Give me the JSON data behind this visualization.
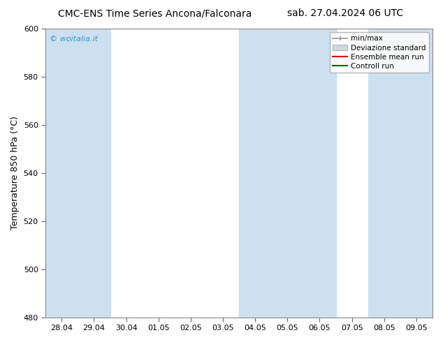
{
  "title_left": "CMC-ENS Time Series Ancona/Falconara",
  "title_right": "sab. 27.04.2024 06 UTC",
  "ylabel": "Temperature 850 hPa (°C)",
  "ylim": [
    480,
    600
  ],
  "yticks": [
    480,
    500,
    520,
    540,
    560,
    580,
    600
  ],
  "xlabels": [
    "28.04",
    "29.04",
    "30.04",
    "01.05",
    "02.05",
    "03.05",
    "04.05",
    "05.05",
    "06.05",
    "07.05",
    "08.05",
    "09.05"
  ],
  "xvalues": [
    0,
    1,
    2,
    3,
    4,
    5,
    6,
    7,
    8,
    9,
    10,
    11
  ],
  "blue_band_color": "#cde0ef",
  "blue_bands_xranges": [
    [
      0,
      0.5
    ],
    [
      1.0,
      1.5
    ],
    [
      6.0,
      6.5
    ],
    [
      7.0,
      7.5
    ],
    [
      8.0,
      8.5
    ],
    [
      11.0,
      11.5
    ]
  ],
  "watermark": "© woitalia.it",
  "watermark_color": "#3399cc",
  "legend_entries": [
    "min/max",
    "Deviazione standard",
    "Ensemble mean run",
    "Controll run"
  ],
  "legend_colors_line": [
    "#999999",
    "#bbbbbb",
    "#dd0000",
    "#006600"
  ],
  "bg_color": "#ffffff",
  "plot_bg_color": "#ffffff",
  "grid_color": "#dddddd",
  "title_fontsize": 10,
  "ylabel_fontsize": 9,
  "tick_fontsize": 8,
  "legend_fontsize": 7.5,
  "watermark_fontsize": 8
}
